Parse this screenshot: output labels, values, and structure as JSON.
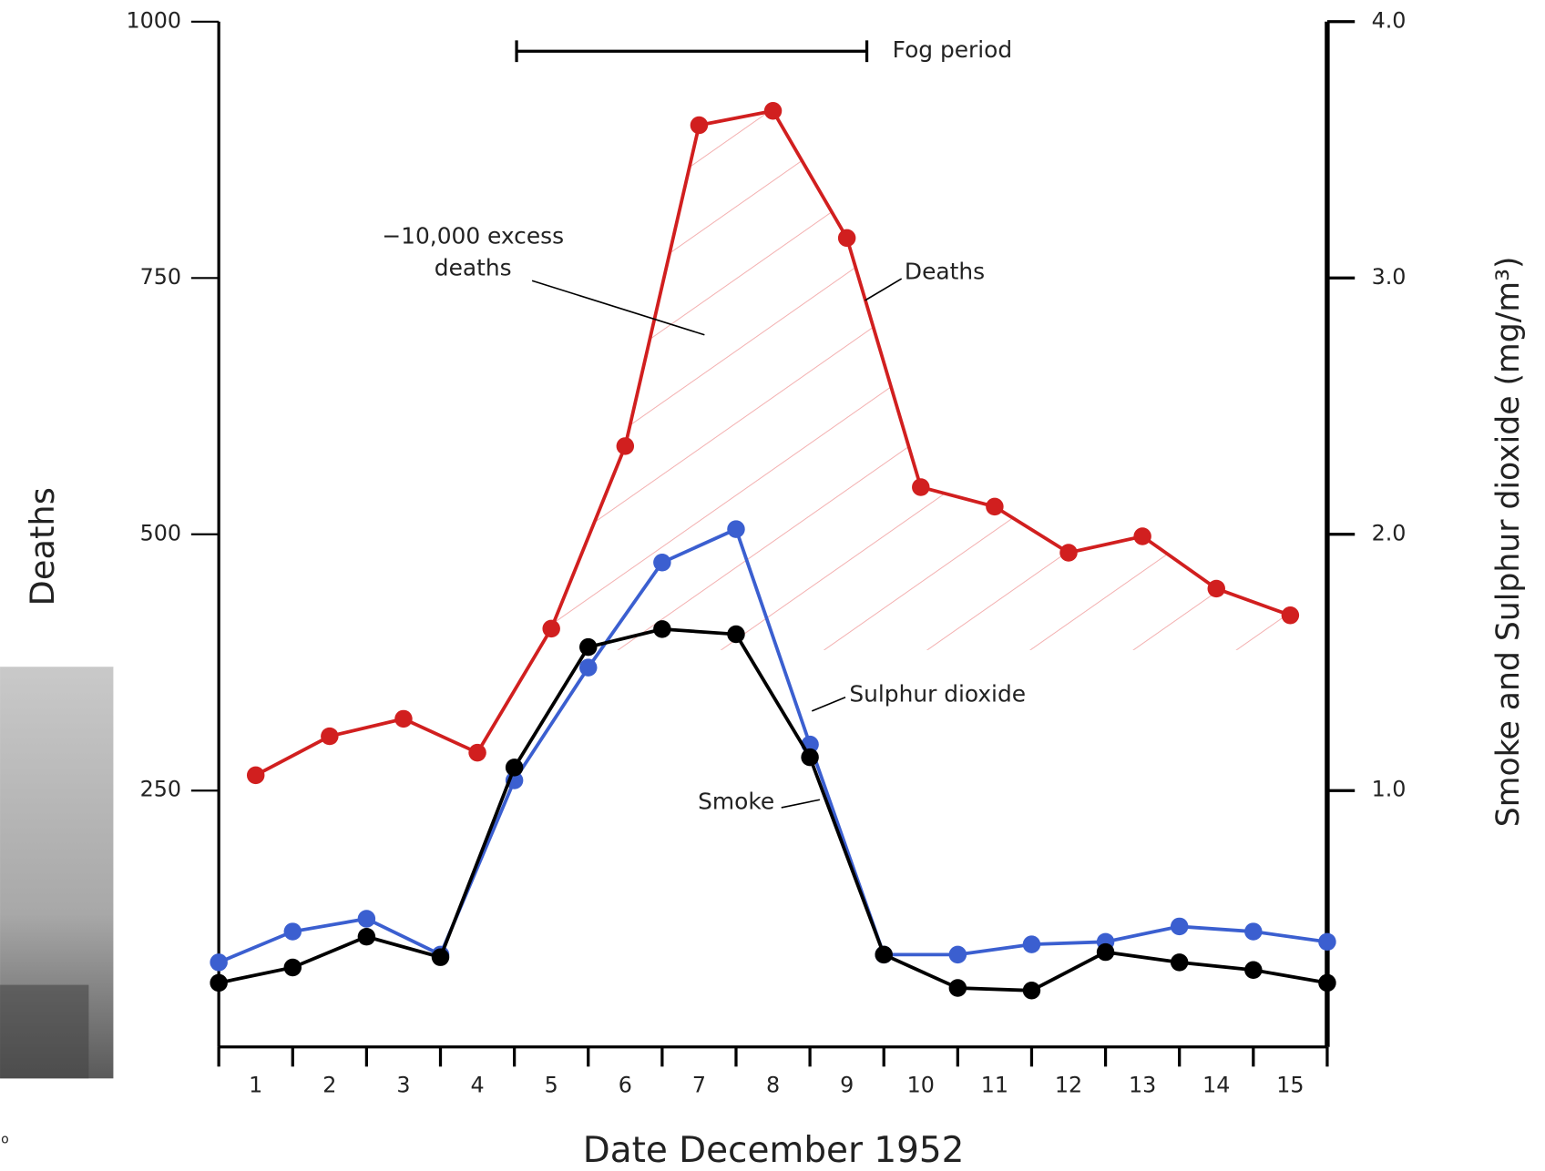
{
  "chart_data": {
    "type": "line",
    "x_label": "Date December 1952",
    "y_label": "Deaths",
    "y2_label": "Smoke and Sulphur dioxide (mg/m³)",
    "xlim": [
      0.5,
      15.5
    ],
    "xticks": [
      1,
      2,
      3,
      4,
      5,
      6,
      7,
      8,
      9,
      10,
      11,
      12,
      13,
      14,
      15
    ],
    "xtick_marks": [
      0.5,
      1.5,
      2.5,
      3.5,
      4.5,
      5.5,
      6.5,
      7.5,
      8.5,
      9.5,
      10.5,
      11.5,
      12.5,
      13.5,
      14.5,
      15.5
    ],
    "ylim": [
      0,
      1000
    ],
    "yticks": [
      250,
      500,
      750,
      1000
    ],
    "y2lim": [
      0,
      4
    ],
    "y2ticks": [
      {
        "value": 1,
        "label": "1.0"
      },
      {
        "value": 2,
        "label": "2.0"
      },
      {
        "value": 3,
        "label": "3.0"
      },
      {
        "value": 4,
        "label": "4.0"
      }
    ],
    "series": [
      {
        "name": "Deaths",
        "color": "#d11f1f",
        "x": [
          1,
          2,
          3,
          4,
          5,
          6,
          7,
          8,
          9,
          10,
          11,
          12,
          13,
          14,
          15
        ],
        "values": [
          265,
          303,
          320,
          287,
          408,
          586,
          899,
          913,
          789,
          546,
          527,
          482,
          498,
          447,
          421
        ]
      },
      {
        "name": "Sulphur dioxide",
        "color": "#3b5fd0",
        "axis": "y2",
        "x": [
          0.5,
          1.5,
          2.5,
          3.5,
          4.5,
          5.5,
          6.5,
          7.5,
          8.5,
          9.5,
          10.5,
          11.5,
          12.5,
          13.5,
          14.5,
          15.5
        ],
        "values": [
          0.33,
          0.45,
          0.5,
          0.36,
          1.04,
          1.48,
          1.89,
          2.02,
          1.18,
          0.36,
          0.36,
          0.4,
          0.41,
          0.47,
          0.45,
          0.41
        ]
      },
      {
        "name": "Smoke",
        "color": "#000000",
        "axis": "y2",
        "x": [
          0.5,
          1.5,
          2.5,
          3.5,
          4.5,
          5.5,
          6.5,
          7.5,
          8.5,
          9.5,
          10.5,
          11.5,
          12.5,
          13.5,
          14.5,
          15.5
        ],
        "values": [
          0.25,
          0.31,
          0.43,
          0.35,
          1.09,
          1.56,
          1.63,
          1.61,
          1.13,
          0.36,
          0.23,
          0.22,
          0.37,
          0.33,
          0.3,
          0.25
        ]
      }
    ],
    "fog_period": {
      "label": "Fog period",
      "start": 4.53,
      "end": 9.27
    },
    "annotation": [
      "−10,000 excess",
      "deaths"
    ],
    "corner_text": "o"
  }
}
